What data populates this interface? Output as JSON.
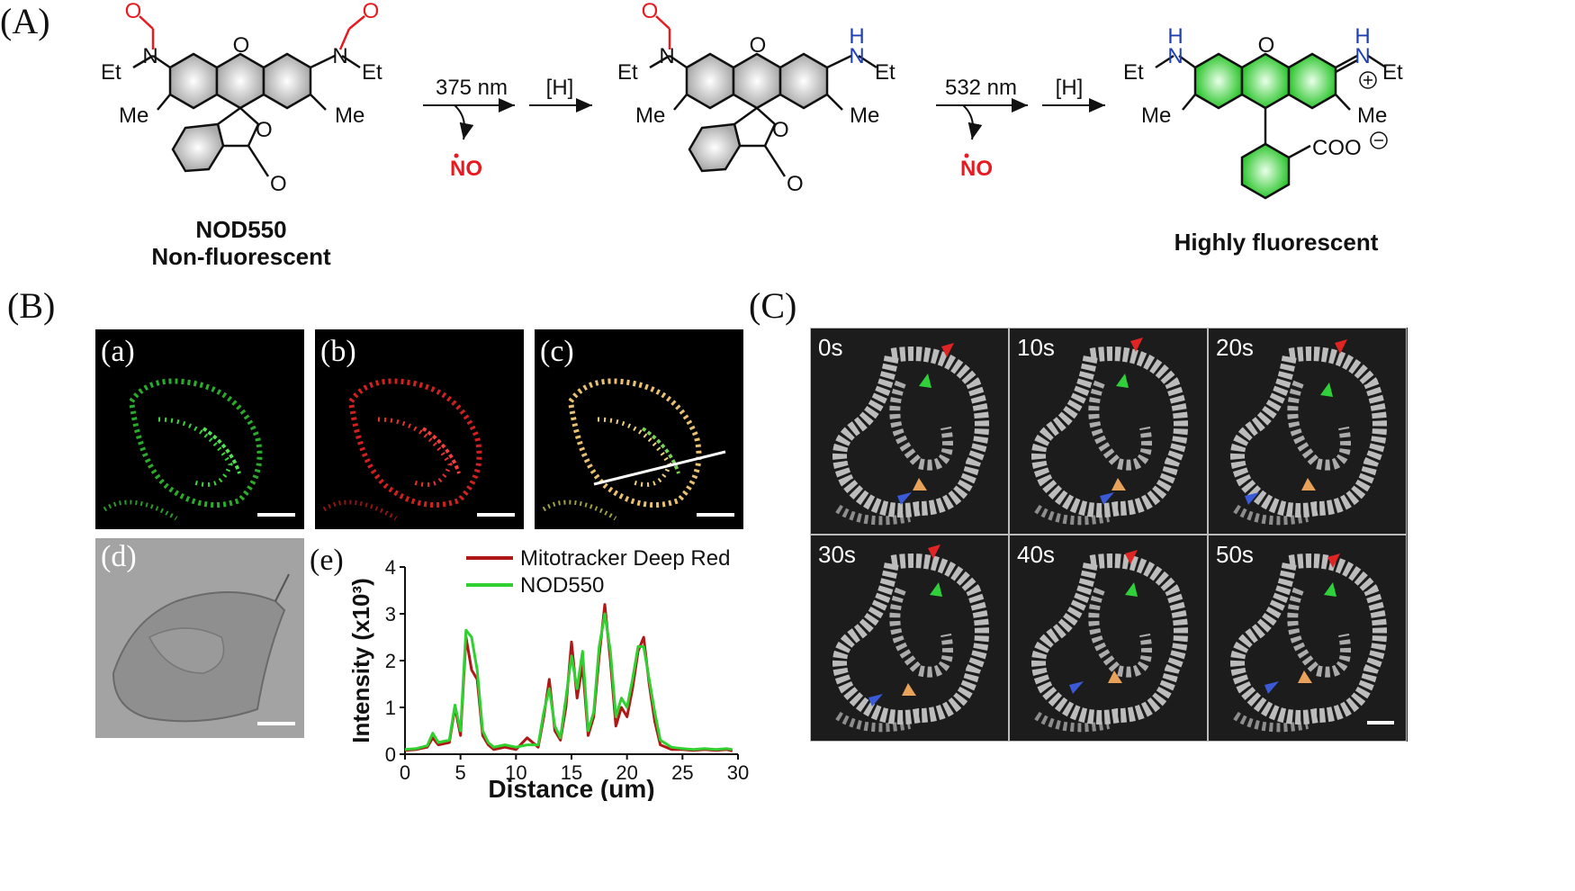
{
  "panels": {
    "A": "(A)",
    "B": "(B)",
    "C": "(C)"
  },
  "scheme": {
    "substituents": {
      "nitroso": "N=O",
      "ethyl": "Et",
      "methyl": "Me",
      "amine_h": "H",
      "carboxylate": "COO",
      "oxygen": "O",
      "nitrogen": "N"
    },
    "step1": {
      "light": "375 nm",
      "reagent": "[H]",
      "byproduct": "NO"
    },
    "step2": {
      "light": "532 nm",
      "reagent": "[H]",
      "byproduct": "NO"
    },
    "compound1_name": "NOD550",
    "compound1_state": "Non-fluorescent",
    "product_state": "Highly fluorescent",
    "colors": {
      "nitroso": "#e8191f",
      "amine": "#1f3fb6",
      "fluorescent": "#37c837",
      "gray_ring": "#b9b9b9"
    }
  },
  "panelB": {
    "tiles": [
      "(a)",
      "(b)",
      "(c)",
      "(d)",
      "(e)"
    ],
    "colors": {
      "a": "#3bd43b",
      "b": "#e02020",
      "c": "#e8c070"
    }
  },
  "chart_data": {
    "type": "line",
    "xlabel": "Distance (um)",
    "ylabel": "Intensity (x10³)",
    "xlim": [
      0,
      30
    ],
    "ylim": [
      0,
      4
    ],
    "xticks": [
      "0",
      "5",
      "10",
      "15",
      "20",
      "25",
      "30"
    ],
    "yticks": [
      "0",
      "1",
      "2",
      "3",
      "4"
    ],
    "legend": "top-right",
    "series": [
      {
        "name": "Mitotracker Deep Red",
        "color": "#b01818",
        "x": [
          0,
          1,
          2,
          2.5,
          3,
          4,
          4.5,
          5,
          5.5,
          6,
          6.5,
          7,
          7.5,
          8,
          9,
          10,
          11,
          12,
          12.5,
          13,
          13.5,
          14,
          14.5,
          15,
          15.5,
          16,
          16.5,
          17,
          17.5,
          18,
          18.5,
          19,
          19.5,
          20,
          20.5,
          21,
          21.5,
          22,
          22.5,
          23,
          24,
          25,
          26,
          27,
          28,
          29,
          29.5
        ],
        "y": [
          0.08,
          0.1,
          0.15,
          0.35,
          0.2,
          0.25,
          1.0,
          0.4,
          2.5,
          1.8,
          1.6,
          0.4,
          0.2,
          0.1,
          0.15,
          0.1,
          0.35,
          0.15,
          0.8,
          1.6,
          0.5,
          0.3,
          1.0,
          2.4,
          1.2,
          1.9,
          0.4,
          0.8,
          2.1,
          3.2,
          2.0,
          0.6,
          1.0,
          0.8,
          1.4,
          2.2,
          2.5,
          1.5,
          0.7,
          0.2,
          0.1,
          0.1,
          0.08,
          0.1,
          0.08,
          0.1,
          0.07
        ]
      },
      {
        "name": "NOD550",
        "color": "#30d030",
        "x": [
          0,
          1,
          2,
          2.5,
          3,
          4,
          4.5,
          5,
          5.5,
          6,
          6.5,
          7,
          7.5,
          8,
          9,
          10,
          11,
          12,
          12.5,
          13,
          13.5,
          14,
          14.5,
          15,
          15.5,
          16,
          16.5,
          17,
          17.5,
          18,
          18.5,
          19,
          19.5,
          20,
          20.5,
          21,
          21.5,
          22,
          22.5,
          23,
          24,
          25,
          26,
          27,
          28,
          29,
          29.5
        ],
        "y": [
          0.1,
          0.12,
          0.18,
          0.45,
          0.25,
          0.3,
          1.05,
          0.5,
          2.65,
          2.5,
          1.8,
          0.5,
          0.25,
          0.15,
          0.2,
          0.15,
          0.2,
          0.2,
          0.9,
          1.4,
          0.6,
          0.35,
          1.2,
          2.1,
          1.4,
          2.2,
          0.5,
          0.9,
          2.3,
          3.0,
          2.2,
          0.8,
          1.2,
          1.0,
          1.6,
          2.3,
          2.3,
          1.6,
          0.9,
          0.3,
          0.15,
          0.12,
          0.1,
          0.12,
          0.1,
          0.12,
          0.1
        ]
      }
    ]
  },
  "panelC": {
    "times": [
      "0s",
      "10s",
      "20s",
      "30s",
      "40s",
      "50s"
    ],
    "arrow_colors": {
      "red": "#e02424",
      "green": "#2fd03a",
      "blue": "#3b5ad8",
      "orange": "#e8a25a"
    }
  }
}
